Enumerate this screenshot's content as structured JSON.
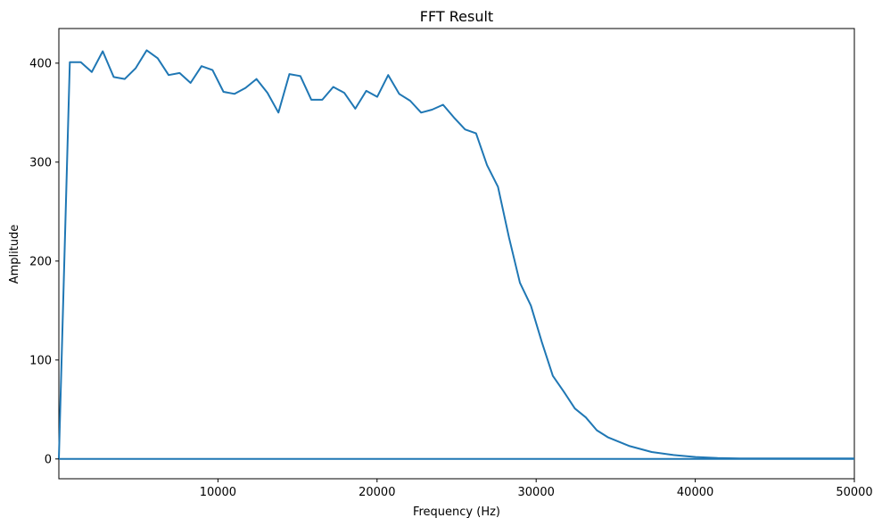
{
  "chart_data": {
    "type": "line",
    "title": "FFT Result",
    "xlabel": "Frequency (Hz)",
    "ylabel": "Amplitude",
    "xlim": [
      0,
      50000
    ],
    "ylim": [
      -20,
      435
    ],
    "xticks": [
      10000,
      20000,
      30000,
      40000,
      50000
    ],
    "yticks": [
      0,
      100,
      200,
      300,
      400
    ],
    "grid": false,
    "line_color": "#1f77b4",
    "series": [
      {
        "x": [
          0,
          690,
          1380,
          2070,
          2760,
          3450,
          4140,
          4830,
          5520,
          6210,
          6900,
          7590,
          8280,
          8970,
          9660,
          10350,
          11040,
          11730,
          12420,
          13110,
          13800,
          14490,
          15180,
          15870,
          16560,
          17250,
          17940,
          18630,
          19320,
          20010,
          20700,
          21390,
          22080,
          22770,
          23460,
          24150,
          24840,
          25530,
          26220,
          26910,
          27600,
          28290,
          28980,
          29670,
          30360,
          31050,
          31740,
          32430,
          33120,
          33810,
          34500,
          35880,
          37260,
          38640,
          40020,
          41400,
          42780,
          44160,
          45540,
          46920,
          48300,
          49680,
          50000
        ],
        "y": [
          0,
          401,
          401,
          391,
          412,
          386,
          384,
          395,
          413,
          405,
          388,
          390,
          380,
          397,
          393,
          371,
          369,
          375,
          384,
          370,
          350,
          389,
          387,
          363,
          363,
          376,
          370,
          354,
          372,
          366,
          388,
          369,
          362,
          350,
          353,
          358,
          345,
          333,
          329,
          297,
          275,
          224,
          178,
          155,
          118,
          84,
          68,
          51,
          42,
          29,
          22,
          13,
          7,
          4,
          2,
          1,
          0.5,
          0.5,
          0.5,
          0.5,
          0.5,
          0.5,
          0.5
        ]
      },
      {
        "x": [
          0,
          50000
        ],
        "y": [
          0,
          0
        ]
      }
    ]
  }
}
